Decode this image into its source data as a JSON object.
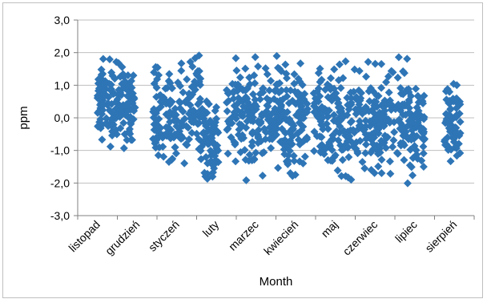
{
  "chart_data": {
    "type": "scatter",
    "title": "",
    "xlabel": "Month",
    "ylabel": "ppm",
    "ylim": [
      -3,
      3
    ],
    "ytick_labels": [
      "-3,0",
      "-2,0",
      "-1,0",
      "0,0",
      "1,0",
      "2,0",
      "3,0"
    ],
    "grid": "horizontal",
    "legend": "none",
    "marker": "diamond",
    "color": "#2e75b6",
    "grid_color": "#bfbfbf",
    "categories": [
      "listopad",
      "grudzień",
      "styczeń",
      "luty",
      "marzec",
      "kwiecień",
      "maj",
      "czerwiec",
      "lipiec",
      "sierpień"
    ],
    "clusters": [
      {
        "category": "listopad",
        "x_range": [
          0.05,
          0.95
        ],
        "y_range": [
          -1.3,
          2.3
        ]
      },
      {
        "category": "grudzień",
        "x_range": [
          0.0,
          0.15
        ],
        "y_range": [
          -1.0,
          2.0
        ]
      },
      {
        "category": "styczeń",
        "x_range": [
          1.4,
          2.6
        ],
        "y_range": [
          -1.9,
          2.4
        ]
      },
      {
        "category": "luty",
        "x_range": [
          2.6,
          3.05
        ],
        "y_range": [
          -2.4,
          1.2
        ]
      },
      {
        "category": "marzec",
        "x_range": [
          3.25,
          4.75
        ],
        "y_range": [
          -2.1,
          2.4
        ]
      },
      {
        "category": "kwiecień",
        "x_range": [
          4.75,
          5.3
        ],
        "y_range": [
          -2.4,
          2.5
        ]
      },
      {
        "category": "maj",
        "x_range": [
          5.45,
          6.35
        ],
        "y_range": [
          -2.4,
          2.4
        ]
      },
      {
        "category": "czerwiec",
        "x_range": [
          6.35,
          7.8
        ],
        "y_range": [
          -2.4,
          2.1
        ]
      },
      {
        "category": "lipiec",
        "x_range": [
          7.8,
          8.25
        ],
        "y_range": [
          -2.4,
          2.0
        ]
      },
      {
        "category": "sierpień",
        "x_range": [
          8.75,
          9.15
        ],
        "y_range": [
          -2.1,
          1.7
        ]
      }
    ]
  }
}
